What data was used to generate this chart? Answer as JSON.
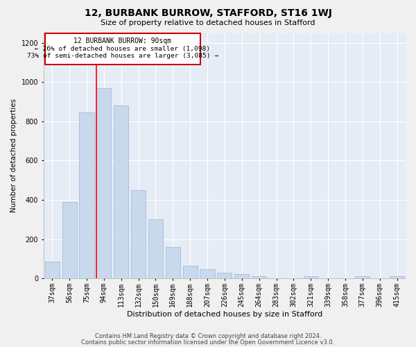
{
  "title1": "12, BURBANK BURROW, STAFFORD, ST16 1WJ",
  "title2": "Size of property relative to detached houses in Stafford",
  "xlabel": "Distribution of detached houses by size in Stafford",
  "ylabel": "Number of detached properties",
  "categories": [
    "37sqm",
    "56sqm",
    "75sqm",
    "94sqm",
    "113sqm",
    "132sqm",
    "150sqm",
    "169sqm",
    "188sqm",
    "207sqm",
    "226sqm",
    "245sqm",
    "264sqm",
    "283sqm",
    "302sqm",
    "321sqm",
    "339sqm",
    "358sqm",
    "377sqm",
    "396sqm",
    "415sqm"
  ],
  "values": [
    85,
    390,
    845,
    970,
    880,
    450,
    300,
    160,
    65,
    45,
    30,
    20,
    10,
    0,
    0,
    10,
    0,
    0,
    10,
    0,
    10
  ],
  "bar_color": "#c8d9ee",
  "bar_edge_color": "#9ab3d0",
  "background_color": "#e6ecf6",
  "grid_color": "#ffffff",
  "annotation_box_color": "#ffffff",
  "annotation_box_edge": "#cc0000",
  "red_line_index": 3,
  "annotation_text_line1": "12 BURBANK BURROW: 90sqm",
  "annotation_text_line2": "← 26% of detached houses are smaller (1,098)",
  "annotation_text_line3": "73% of semi-detached houses are larger (3,085) →",
  "footer1": "Contains HM Land Registry data © Crown copyright and database right 2024.",
  "footer2": "Contains public sector information licensed under the Open Government Licence v3.0.",
  "ylim": [
    0,
    1250
  ],
  "yticks": [
    0,
    200,
    400,
    600,
    800,
    1000,
    1200
  ],
  "title1_fontsize": 10,
  "title2_fontsize": 8,
  "ylabel_fontsize": 7.5,
  "xlabel_fontsize": 8,
  "footer_fontsize": 6,
  "tick_fontsize": 7
}
